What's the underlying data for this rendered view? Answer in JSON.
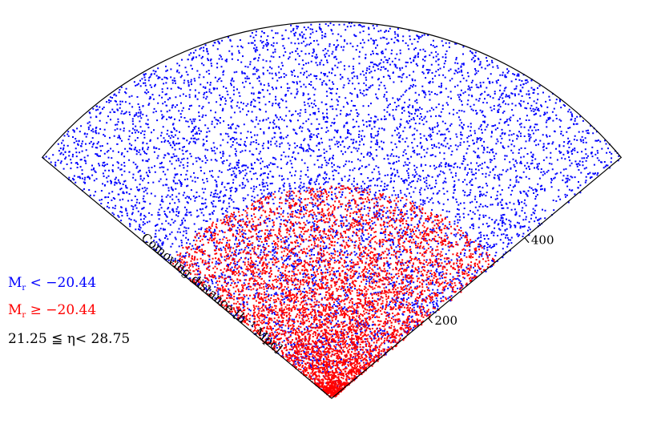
{
  "chart_data": {
    "type": "scatter",
    "projection": "wedge",
    "xlabel": "Comoving distance [h⁻¹ Mpc]",
    "tick_labels": [
      "200",
      "400"
    ],
    "tick_values": [
      200,
      400
    ],
    "radial_range": [
      0,
      600
    ],
    "series": [
      {
        "name": "M_r < −20.44",
        "color": "#0000ff",
        "density_model": "shell-outer"
      },
      {
        "name": "M_r ≥ −20.44",
        "color": "#ff0000",
        "density_model": "inner"
      }
    ],
    "annotation": "21.25 ≦ η< 28.75",
    "grid": false
  },
  "legend": {
    "blue": {
      "prefix": "M",
      "sub": "r",
      "rel": " < ",
      "value": "−20.44"
    },
    "red": {
      "prefix": "M",
      "sub": "r",
      "rel": " ≥ ",
      "value": "−20.44"
    },
    "slice": "21.25 ≦ η< 28.75"
  }
}
